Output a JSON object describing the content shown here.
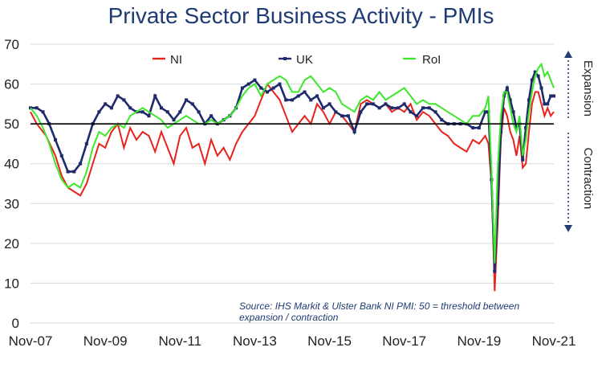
{
  "chart_data": {
    "type": "line",
    "title": "Private Sector Business Activity - PMIs",
    "xlabel": "",
    "ylabel": "",
    "ylim": [
      0,
      70
    ],
    "xlim": [
      "2007-11",
      "2021-11"
    ],
    "y_ticks": [
      0,
      10,
      20,
      30,
      40,
      50,
      60,
      70
    ],
    "x_tick_labels": [
      "Nov-07",
      "Nov-09",
      "Nov-11",
      "Nov-13",
      "Nov-15",
      "Nov-17",
      "Nov-19",
      "Nov-21"
    ],
    "x_tick_dates": [
      "2007-11",
      "2009-11",
      "2011-11",
      "2013-11",
      "2015-11",
      "2017-11",
      "2019-11",
      "2021-11"
    ],
    "threshold": 50,
    "grid": true,
    "legend_position": "top",
    "annotations": {
      "expansion": "Expansion",
      "contraction": "Contraction",
      "source": "Source: IHS Markit & Ulster Bank NI PMI: 50 = threshold between",
      "source_line2": "expansion / contraction"
    },
    "colors": {
      "NI": "#e8221c",
      "UK": "#1f2a6b",
      "RoI": "#3de82c",
      "threshold": "#000000",
      "title": "#1f3b73",
      "annotation": "#1f3b73"
    },
    "series": [
      {
        "name": "NI",
        "points": [
          [
            "2007-11",
            53
          ],
          [
            "2008-01",
            50
          ],
          [
            "2008-04",
            47
          ],
          [
            "2008-07",
            42
          ],
          [
            "2008-09",
            37
          ],
          [
            "2008-11",
            34
          ],
          [
            "2009-01",
            33
          ],
          [
            "2009-03",
            32
          ],
          [
            "2009-05",
            35
          ],
          [
            "2009-07",
            40
          ],
          [
            "2009-09",
            45
          ],
          [
            "2009-11",
            44
          ],
          [
            "2010-01",
            48
          ],
          [
            "2010-03",
            50
          ],
          [
            "2010-05",
            44
          ],
          [
            "2010-07",
            49
          ],
          [
            "2010-09",
            46
          ],
          [
            "2010-11",
            48
          ],
          [
            "2011-01",
            47
          ],
          [
            "2011-03",
            43
          ],
          [
            "2011-05",
            48
          ],
          [
            "2011-07",
            44
          ],
          [
            "2011-09",
            40
          ],
          [
            "2011-11",
            47
          ],
          [
            "2012-01",
            49
          ],
          [
            "2012-03",
            44
          ],
          [
            "2012-05",
            45
          ],
          [
            "2012-07",
            40
          ],
          [
            "2012-09",
            46
          ],
          [
            "2012-11",
            42
          ],
          [
            "2013-01",
            44
          ],
          [
            "2013-03",
            41
          ],
          [
            "2013-05",
            45
          ],
          [
            "2013-07",
            48
          ],
          [
            "2013-09",
            50
          ],
          [
            "2013-11",
            52
          ],
          [
            "2014-01",
            56
          ],
          [
            "2014-03",
            60
          ],
          [
            "2014-05",
            58
          ],
          [
            "2014-07",
            56
          ],
          [
            "2014-09",
            52
          ],
          [
            "2014-11",
            48
          ],
          [
            "2015-01",
            50
          ],
          [
            "2015-03",
            52
          ],
          [
            "2015-05",
            50
          ],
          [
            "2015-07",
            55
          ],
          [
            "2015-09",
            53
          ],
          [
            "2015-11",
            50
          ],
          [
            "2016-01",
            53
          ],
          [
            "2016-03",
            52
          ],
          [
            "2016-05",
            50
          ],
          [
            "2016-07",
            48
          ],
          [
            "2016-09",
            55
          ],
          [
            "2016-11",
            56
          ],
          [
            "2017-01",
            55
          ],
          [
            "2017-03",
            54
          ],
          [
            "2017-05",
            55
          ],
          [
            "2017-07",
            53
          ],
          [
            "2017-09",
            54
          ],
          [
            "2017-11",
            53
          ],
          [
            "2018-01",
            55
          ],
          [
            "2018-03",
            51
          ],
          [
            "2018-05",
            53
          ],
          [
            "2018-07",
            52
          ],
          [
            "2018-09",
            50
          ],
          [
            "2018-11",
            48
          ],
          [
            "2019-01",
            47
          ],
          [
            "2019-03",
            45
          ],
          [
            "2019-05",
            44
          ],
          [
            "2019-07",
            43
          ],
          [
            "2019-09",
            46
          ],
          [
            "2019-11",
            45
          ],
          [
            "2020-01",
            47
          ],
          [
            "2020-02",
            45
          ],
          [
            "2020-03",
            35
          ],
          [
            "2020-04",
            8
          ],
          [
            "2020-05",
            25
          ],
          [
            "2020-06",
            46
          ],
          [
            "2020-07",
            54
          ],
          [
            "2020-08",
            52
          ],
          [
            "2020-09",
            48
          ],
          [
            "2020-10",
            46
          ],
          [
            "2020-11",
            42
          ],
          [
            "2020-12",
            47
          ],
          [
            "2021-01",
            39
          ],
          [
            "2021-02",
            40
          ],
          [
            "2021-03",
            48
          ],
          [
            "2021-04",
            55
          ],
          [
            "2021-05",
            58
          ],
          [
            "2021-06",
            58
          ],
          [
            "2021-07",
            55
          ],
          [
            "2021-08",
            52
          ],
          [
            "2021-09",
            54
          ],
          [
            "2021-10",
            52
          ],
          [
            "2021-11",
            53
          ]
        ]
      },
      {
        "name": "UK",
        "points": [
          [
            "2007-11",
            54
          ],
          [
            "2008-01",
            54
          ],
          [
            "2008-03",
            53
          ],
          [
            "2008-05",
            50
          ],
          [
            "2008-07",
            46
          ],
          [
            "2008-09",
            42
          ],
          [
            "2008-11",
            38
          ],
          [
            "2009-01",
            38
          ],
          [
            "2009-03",
            40
          ],
          [
            "2009-05",
            45
          ],
          [
            "2009-07",
            50
          ],
          [
            "2009-09",
            53
          ],
          [
            "2009-11",
            55
          ],
          [
            "2010-01",
            54
          ],
          [
            "2010-03",
            57
          ],
          [
            "2010-05",
            56
          ],
          [
            "2010-07",
            54
          ],
          [
            "2010-09",
            53
          ],
          [
            "2010-11",
            53
          ],
          [
            "2011-01",
            52
          ],
          [
            "2011-03",
            57
          ],
          [
            "2011-05",
            54
          ],
          [
            "2011-07",
            53
          ],
          [
            "2011-09",
            51
          ],
          [
            "2011-11",
            53
          ],
          [
            "2012-01",
            56
          ],
          [
            "2012-03",
            55
          ],
          [
            "2012-05",
            53
          ],
          [
            "2012-07",
            50
          ],
          [
            "2012-09",
            52
          ],
          [
            "2012-11",
            50
          ],
          [
            "2013-01",
            51
          ],
          [
            "2013-03",
            52
          ],
          [
            "2013-05",
            54
          ],
          [
            "2013-07",
            59
          ],
          [
            "2013-09",
            60
          ],
          [
            "2013-11",
            61
          ],
          [
            "2014-01",
            59
          ],
          [
            "2014-03",
            58
          ],
          [
            "2014-05",
            59
          ],
          [
            "2014-07",
            60
          ],
          [
            "2014-09",
            56
          ],
          [
            "2014-11",
            56
          ],
          [
            "2015-01",
            57
          ],
          [
            "2015-03",
            58
          ],
          [
            "2015-05",
            56
          ],
          [
            "2015-07",
            57
          ],
          [
            "2015-09",
            54
          ],
          [
            "2015-11",
            55
          ],
          [
            "2016-01",
            53
          ],
          [
            "2016-03",
            52
          ],
          [
            "2016-05",
            52
          ],
          [
            "2016-07",
            48
          ],
          [
            "2016-09",
            53
          ],
          [
            "2016-11",
            55
          ],
          [
            "2017-01",
            55
          ],
          [
            "2017-03",
            54
          ],
          [
            "2017-05",
            55
          ],
          [
            "2017-07",
            54
          ],
          [
            "2017-09",
            54
          ],
          [
            "2017-11",
            55
          ],
          [
            "2018-01",
            53
          ],
          [
            "2018-03",
            52
          ],
          [
            "2018-05",
            54
          ],
          [
            "2018-07",
            54
          ],
          [
            "2018-09",
            53
          ],
          [
            "2018-11",
            51
          ],
          [
            "2019-01",
            50
          ],
          [
            "2019-03",
            50
          ],
          [
            "2019-05",
            50
          ],
          [
            "2019-07",
            50
          ],
          [
            "2019-09",
            49
          ],
          [
            "2019-11",
            49
          ],
          [
            "2020-01",
            53
          ],
          [
            "2020-02",
            53
          ],
          [
            "2020-03",
            36
          ],
          [
            "2020-04",
            13
          ],
          [
            "2020-05",
            30
          ],
          [
            "2020-06",
            48
          ],
          [
            "2020-07",
            57
          ],
          [
            "2020-08",
            59
          ],
          [
            "2020-09",
            56
          ],
          [
            "2020-10",
            53
          ],
          [
            "2020-11",
            49
          ],
          [
            "2020-12",
            50
          ],
          [
            "2021-01",
            41
          ],
          [
            "2021-02",
            49
          ],
          [
            "2021-03",
            56
          ],
          [
            "2021-04",
            61
          ],
          [
            "2021-05",
            63
          ],
          [
            "2021-06",
            62
          ],
          [
            "2021-07",
            59
          ],
          [
            "2021-08",
            55
          ],
          [
            "2021-09",
            55
          ],
          [
            "2021-10",
            57
          ],
          [
            "2021-11",
            57
          ]
        ]
      },
      {
        "name": "RoI",
        "points": [
          [
            "2007-11",
            54
          ],
          [
            "2008-01",
            52
          ],
          [
            "2008-03",
            49
          ],
          [
            "2008-05",
            45
          ],
          [
            "2008-07",
            40
          ],
          [
            "2008-09",
            36
          ],
          [
            "2008-11",
            34
          ],
          [
            "2009-01",
            35
          ],
          [
            "2009-03",
            34
          ],
          [
            "2009-05",
            38
          ],
          [
            "2009-07",
            44
          ],
          [
            "2009-09",
            48
          ],
          [
            "2009-11",
            47
          ],
          [
            "2010-01",
            49
          ],
          [
            "2010-03",
            50
          ],
          [
            "2010-05",
            49
          ],
          [
            "2010-07",
            52
          ],
          [
            "2010-09",
            53
          ],
          [
            "2010-11",
            54
          ],
          [
            "2011-01",
            53
          ],
          [
            "2011-03",
            52
          ],
          [
            "2011-05",
            51
          ],
          [
            "2011-07",
            49
          ],
          [
            "2011-09",
            50
          ],
          [
            "2011-11",
            51
          ],
          [
            "2012-01",
            52
          ],
          [
            "2012-03",
            51
          ],
          [
            "2012-05",
            50
          ],
          [
            "2012-07",
            50
          ],
          [
            "2012-09",
            51
          ],
          [
            "2012-11",
            50
          ],
          [
            "2013-01",
            51
          ],
          [
            "2013-03",
            52
          ],
          [
            "2013-05",
            54
          ],
          [
            "2013-07",
            57
          ],
          [
            "2013-09",
            59
          ],
          [
            "2013-11",
            60
          ],
          [
            "2014-01",
            57
          ],
          [
            "2014-03",
            60
          ],
          [
            "2014-05",
            61
          ],
          [
            "2014-07",
            62
          ],
          [
            "2014-09",
            61
          ],
          [
            "2014-11",
            58
          ],
          [
            "2015-01",
            58
          ],
          [
            "2015-03",
            61
          ],
          [
            "2015-05",
            62
          ],
          [
            "2015-07",
            60
          ],
          [
            "2015-09",
            58
          ],
          [
            "2015-11",
            59
          ],
          [
            "2016-01",
            58
          ],
          [
            "2016-03",
            55
          ],
          [
            "2016-05",
            54
          ],
          [
            "2016-07",
            53
          ],
          [
            "2016-09",
            56
          ],
          [
            "2016-11",
            57
          ],
          [
            "2017-01",
            56
          ],
          [
            "2017-03",
            58
          ],
          [
            "2017-05",
            56
          ],
          [
            "2017-07",
            57
          ],
          [
            "2017-09",
            58
          ],
          [
            "2017-11",
            59
          ],
          [
            "2018-01",
            57
          ],
          [
            "2018-03",
            55
          ],
          [
            "2018-05",
            56
          ],
          [
            "2018-07",
            55
          ],
          [
            "2018-09",
            55
          ],
          [
            "2018-11",
            54
          ],
          [
            "2019-01",
            53
          ],
          [
            "2019-03",
            52
          ],
          [
            "2019-05",
            51
          ],
          [
            "2019-07",
            50
          ],
          [
            "2019-09",
            52
          ],
          [
            "2019-11",
            52
          ],
          [
            "2020-01",
            54
          ],
          [
            "2020-02",
            57
          ],
          [
            "2020-03",
            38
          ],
          [
            "2020-04",
            15
          ],
          [
            "2020-05",
            39
          ],
          [
            "2020-06",
            52
          ],
          [
            "2020-07",
            58
          ],
          [
            "2020-08",
            58
          ],
          [
            "2020-09",
            54
          ],
          [
            "2020-10",
            50
          ],
          [
            "2020-11",
            48
          ],
          [
            "2020-12",
            52
          ],
          [
            "2021-01",
            42
          ],
          [
            "2021-02",
            46
          ],
          [
            "2021-03",
            53
          ],
          [
            "2021-04",
            58
          ],
          [
            "2021-05",
            62
          ],
          [
            "2021-06",
            64
          ],
          [
            "2021-07",
            65
          ],
          [
            "2021-08",
            62
          ],
          [
            "2021-09",
            63
          ],
          [
            "2021-10",
            61
          ],
          [
            "2021-11",
            59
          ]
        ]
      }
    ]
  }
}
